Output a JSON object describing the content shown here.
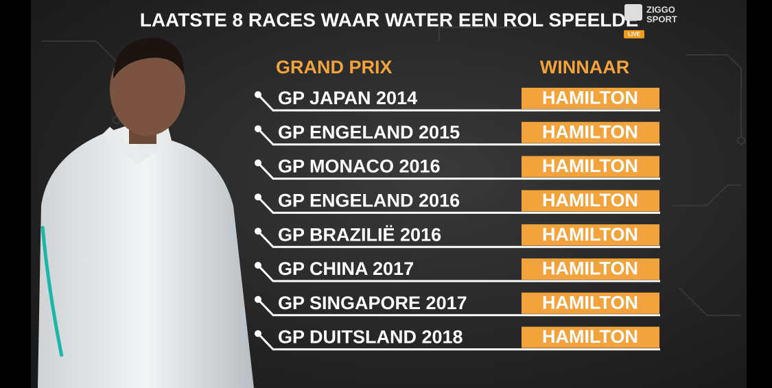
{
  "header": {
    "title": "LAATSTE 8 RACES WAAR WATER EEN ROL SPEELDE"
  },
  "logo": {
    "brand": "ZIGGO",
    "sub": "SPORT",
    "badge": "LIVE"
  },
  "table": {
    "columns": [
      "GRAND PRIX",
      "WINNAAR"
    ],
    "rows": [
      [
        "GP JAPAN 2014",
        "HAMILTON"
      ],
      [
        "GP ENGELAND 2015",
        "HAMILTON"
      ],
      [
        "GP MONACO 2016",
        "HAMILTON"
      ],
      [
        "GP ENGELAND 2016",
        "HAMILTON"
      ],
      [
        "GP BRAZILIË 2016",
        "HAMILTON"
      ],
      [
        "GP CHINA 2017",
        "HAMILTON"
      ],
      [
        "GP SINGAPORE 2017",
        "HAMILTON"
      ],
      [
        "GP DUITSLAND 2018",
        "HAMILTON"
      ]
    ]
  }
}
